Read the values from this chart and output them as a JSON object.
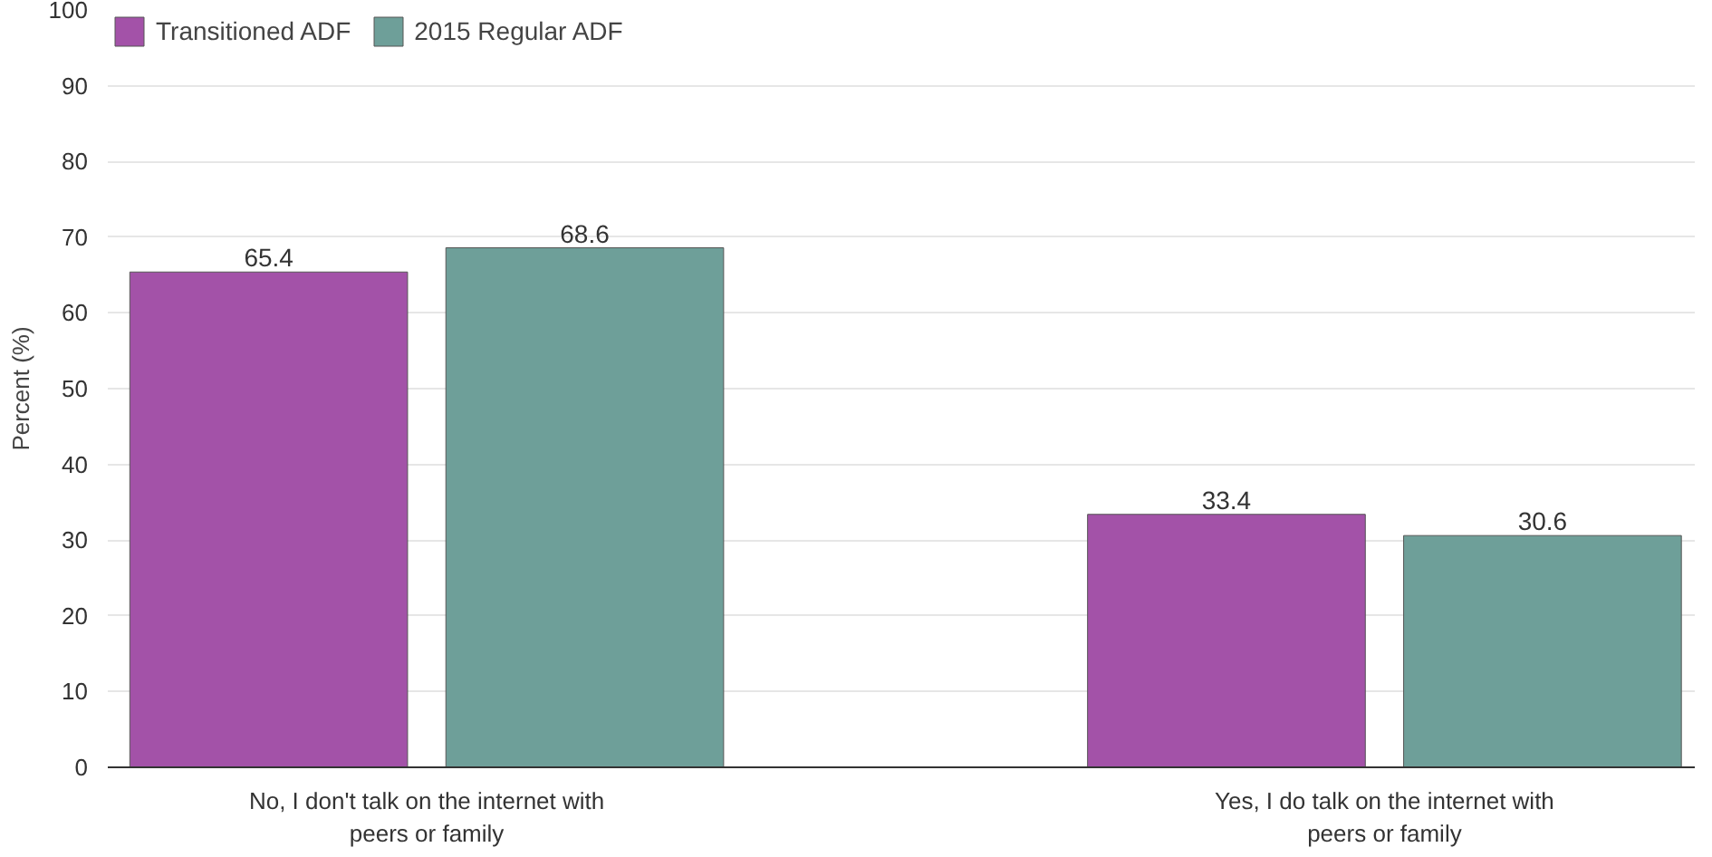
{
  "chart_data": {
    "type": "bar",
    "ylabel": "Percent (%)",
    "categories": [
      "No, I don't talk on the internet with peers or family",
      "Yes, I do talk on the internet with peers or family"
    ],
    "series": [
      {
        "name": "Transitioned ADF",
        "color": "#a352a8",
        "values": [
          65.4,
          33.4
        ]
      },
      {
        "name": "2015 Regular ADF",
        "color": "#6e9f99",
        "values": [
          68.6,
          30.6
        ]
      }
    ],
    "ylim": [
      0,
      100
    ],
    "yticks": [
      0,
      10,
      20,
      30,
      40,
      50,
      60,
      70,
      80,
      90,
      100
    ],
    "grid": "y",
    "legend": "top left",
    "data_labels": true
  }
}
